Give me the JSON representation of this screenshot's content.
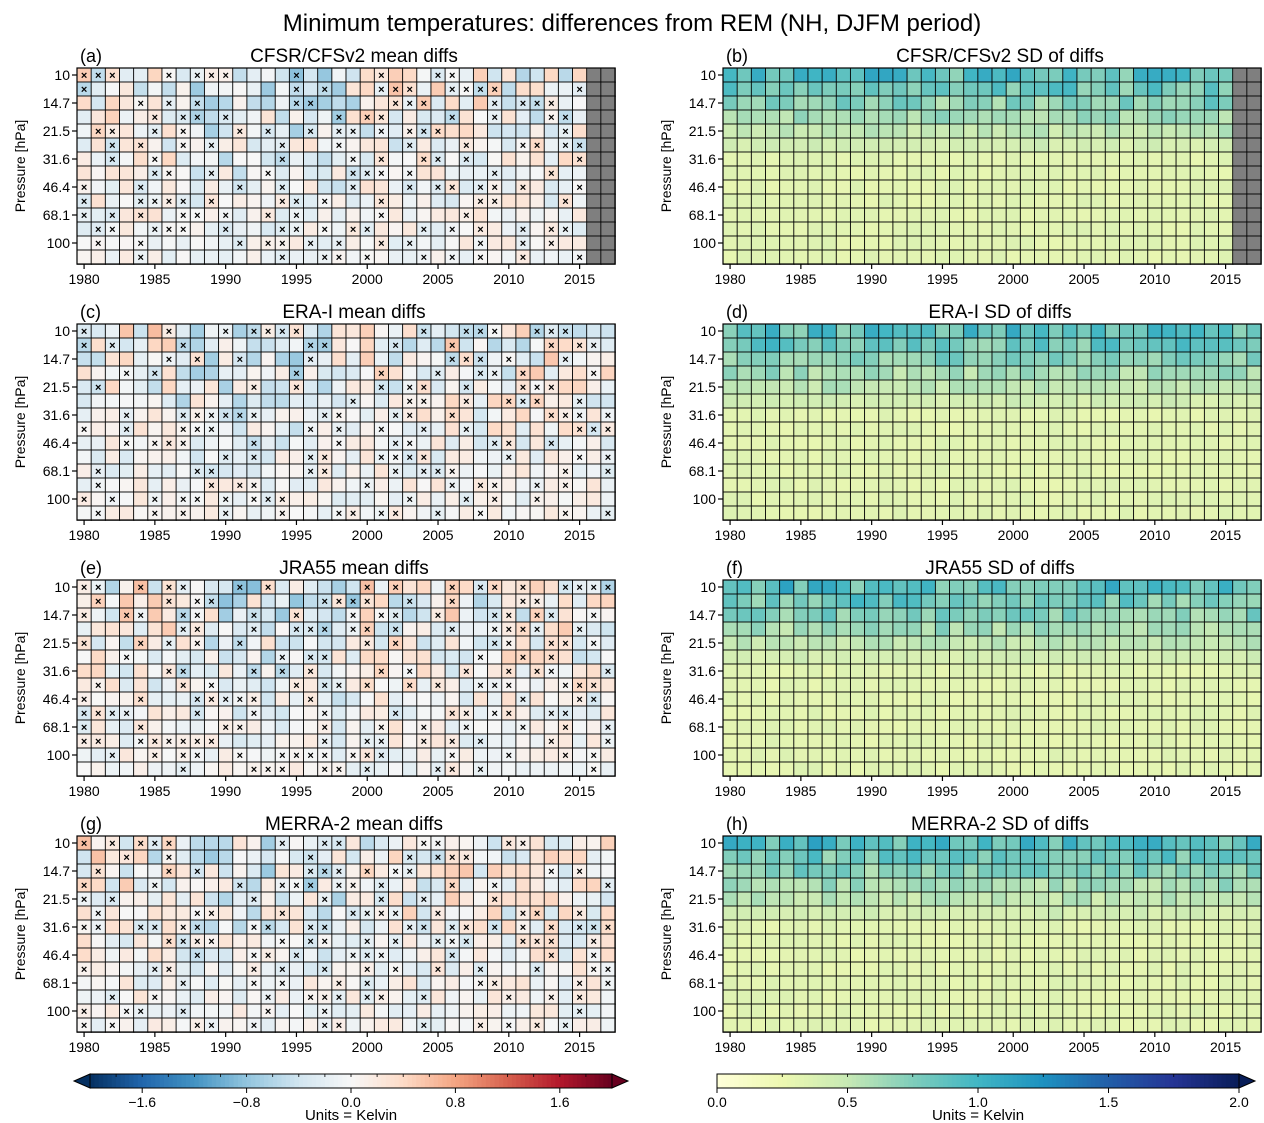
{
  "figure": {
    "title": "Minimum temperatures: differences from REM (NH, DJFM period)"
  },
  "chart_data": [
    {
      "type": "heatmap",
      "label": "(a)",
      "title": "CFSR/CFSv2 mean diffs",
      "kind": "mean",
      "ylabel": "Pressure [hPa]",
      "y_ticks": [
        "10",
        "14.7",
        "21.5",
        "31.6",
        "46.4",
        "68.1",
        "100"
      ],
      "x_ticks": [
        "1980",
        "1985",
        "1990",
        "1995",
        "2000",
        "2005",
        "2010",
        "2015"
      ],
      "x_range": [
        1980,
        2017
      ],
      "levels": 14,
      "missing_from_year": 2016,
      "seed": 11
    },
    {
      "type": "heatmap",
      "label": "(b)",
      "title": "CFSR/CFSv2 SD of diffs",
      "kind": "sd",
      "ylabel": "Pressure [hPa]",
      "y_ticks": [
        "10",
        "14.7",
        "21.5",
        "31.6",
        "46.4",
        "68.1",
        "100"
      ],
      "x_ticks": [
        "1980",
        "1985",
        "1990",
        "1995",
        "2000",
        "2005",
        "2010",
        "2015"
      ],
      "x_range": [
        1980,
        2017
      ],
      "levels": 14,
      "missing_from_year": 2016,
      "seed": 12
    },
    {
      "type": "heatmap",
      "label": "(c)",
      "title": "ERA-I mean diffs",
      "kind": "mean",
      "ylabel": "Pressure [hPa]",
      "y_ticks": [
        "10",
        "14.7",
        "21.5",
        "31.6",
        "46.4",
        "68.1",
        "100"
      ],
      "x_ticks": [
        "1980",
        "1985",
        "1990",
        "1995",
        "2000",
        "2005",
        "2010",
        "2015"
      ],
      "x_range": [
        1980,
        2017
      ],
      "levels": 14,
      "missing_from_year": null,
      "seed": 21
    },
    {
      "type": "heatmap",
      "label": "(d)",
      "title": "ERA-I SD of diffs",
      "kind": "sd",
      "ylabel": "Pressure [hPa]",
      "y_ticks": [
        "10",
        "14.7",
        "21.5",
        "31.6",
        "46.4",
        "68.1",
        "100"
      ],
      "x_ticks": [
        "1980",
        "1985",
        "1990",
        "1995",
        "2000",
        "2005",
        "2010",
        "2015"
      ],
      "x_range": [
        1980,
        2017
      ],
      "levels": 14,
      "missing_from_year": null,
      "seed": 22
    },
    {
      "type": "heatmap",
      "label": "(e)",
      "title": "JRA55 mean diffs",
      "kind": "mean",
      "ylabel": "Pressure [hPa]",
      "y_ticks": [
        "10",
        "14.7",
        "21.5",
        "31.6",
        "46.4",
        "68.1",
        "100"
      ],
      "x_ticks": [
        "1980",
        "1985",
        "1990",
        "1995",
        "2000",
        "2005",
        "2010",
        "2015"
      ],
      "x_range": [
        1980,
        2017
      ],
      "levels": 14,
      "missing_from_year": null,
      "seed": 31
    },
    {
      "type": "heatmap",
      "label": "(f)",
      "title": "JRA55 SD of diffs",
      "kind": "sd",
      "ylabel": "Pressure [hPa]",
      "y_ticks": [
        "10",
        "14.7",
        "21.5",
        "31.6",
        "46.4",
        "68.1",
        "100"
      ],
      "x_ticks": [
        "1980",
        "1985",
        "1990",
        "1995",
        "2000",
        "2005",
        "2010",
        "2015"
      ],
      "x_range": [
        1980,
        2017
      ],
      "levels": 14,
      "missing_from_year": null,
      "seed": 32
    },
    {
      "type": "heatmap",
      "label": "(g)",
      "title": "MERRA-2 mean diffs",
      "kind": "mean",
      "ylabel": "Pressure [hPa]",
      "y_ticks": [
        "10",
        "14.7",
        "21.5",
        "31.6",
        "46.4",
        "68.1",
        "100"
      ],
      "x_ticks": [
        "1980",
        "1985",
        "1990",
        "1995",
        "2000",
        "2005",
        "2010",
        "2015"
      ],
      "x_range": [
        1980,
        2017
      ],
      "levels": 14,
      "missing_from_year": null,
      "seed": 41
    },
    {
      "type": "heatmap",
      "label": "(h)",
      "title": "MERRA-2 SD of diffs",
      "kind": "sd",
      "ylabel": "Pressure [hPa]",
      "y_ticks": [
        "10",
        "14.7",
        "21.5",
        "31.6",
        "46.4",
        "68.1",
        "100"
      ],
      "x_ticks": [
        "1980",
        "1985",
        "1990",
        "1995",
        "2000",
        "2005",
        "2010",
        "2015"
      ],
      "x_range": [
        1980,
        2017
      ],
      "levels": 14,
      "missing_from_year": null,
      "seed": 42
    }
  ],
  "colorbars": [
    {
      "name": "mean-colorbar",
      "colormap": "RdBu_r",
      "range": [
        -2.0,
        2.0
      ],
      "tick_values": [
        -1.6,
        -0.8,
        0.0,
        0.8,
        1.6
      ],
      "tick_labels": [
        "−1.6",
        "−0.8",
        "0.0",
        "0.8",
        "1.6"
      ],
      "minor_step": 0.2,
      "extend": "both",
      "label": "Units = Kelvin"
    },
    {
      "name": "sd-colorbar",
      "colormap": "YlGnBu",
      "range": [
        0.0,
        2.0
      ],
      "tick_values": [
        0.0,
        0.5,
        1.0,
        1.5,
        2.0
      ],
      "tick_labels": [
        "0.0",
        "0.5",
        "1.0",
        "1.5",
        "2.0"
      ],
      "minor_step": 0.25,
      "extend": "max",
      "label": "Units = Kelvin"
    }
  ],
  "colors": {
    "missing": "#7f7f7f",
    "grid": "#000000",
    "cross": "#000000"
  }
}
